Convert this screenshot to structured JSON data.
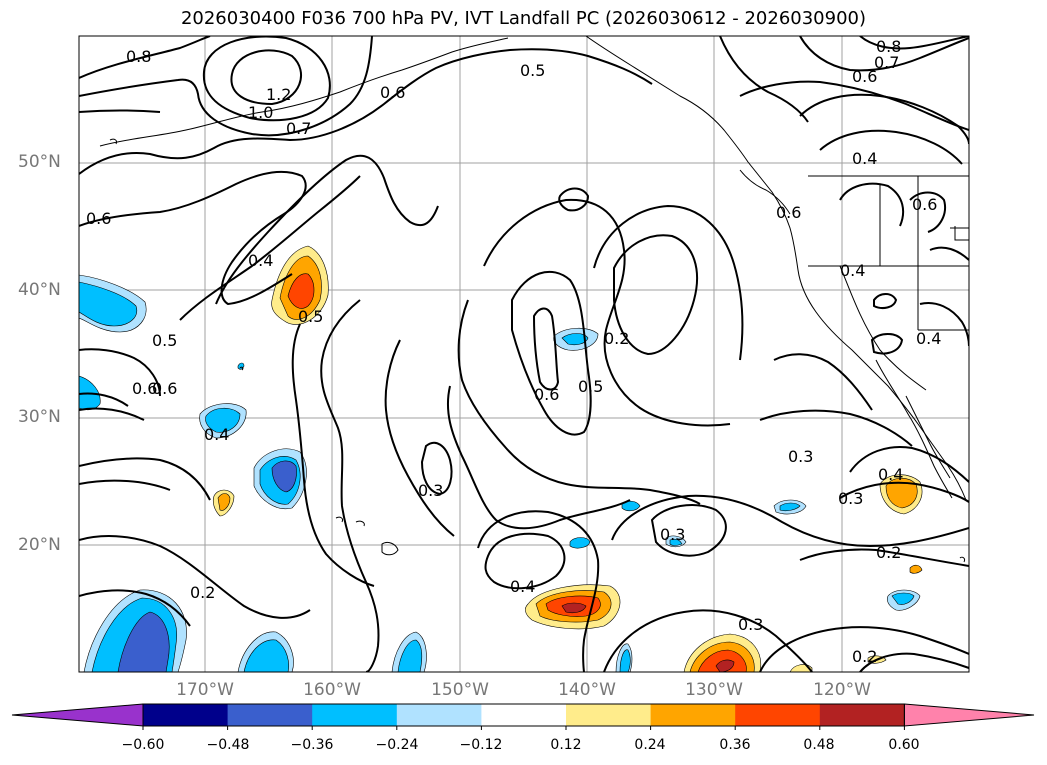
{
  "title": "2026030400 F036 700 hPa PV, IVT Landfall PC (2026030612 - 2026030900)",
  "lat_labels": [
    "50°N",
    "40°N",
    "30°N",
    "20°N"
  ],
  "lon_labels": [
    "170°W",
    "160°W",
    "150°W",
    "140°W",
    "130°W",
    "120°W"
  ],
  "contour_labels": [
    "0.8",
    "1.2",
    "1.0",
    "0.6",
    "0.7",
    "0.5",
    "0.8",
    "0.7",
    "0.6",
    "0.4",
    "0.6",
    "0.6",
    "0.6",
    "0.4",
    "0.5",
    "0.4",
    "0.5",
    "0.6",
    "0.5",
    "0.2",
    "0.6",
    "0.6",
    "0.4",
    "0.4",
    "0.3",
    "0.4",
    "0.3",
    "0.3",
    "0.3",
    "0.2",
    "0.4",
    "0.2",
    "0.3",
    "0.2"
  ],
  "colorbar": {
    "ticks": [
      "−0.60",
      "−0.48",
      "−0.36",
      "−0.24",
      "−0.12",
      "0.12",
      "0.24",
      "0.36",
      "0.48",
      "0.60"
    ],
    "colors": [
      "#9932cc",
      "#00008b",
      "#3a5fcd",
      "#00bfff",
      "#b0e2ff",
      "#ffffff",
      "#ffec8b",
      "#ffa500",
      "#ff4500",
      "#b22222",
      "#ff82ab"
    ]
  }
}
